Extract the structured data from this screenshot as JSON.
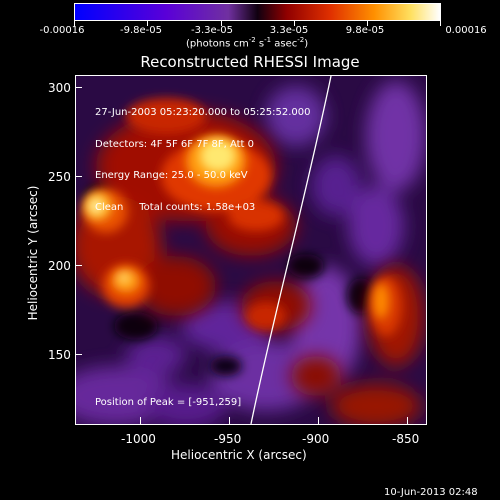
{
  "colorbar": {
    "ticks": [
      "-0.00016",
      "-9.8e-05",
      "-3.3e-05",
      "3.3e-05",
      "9.8e-05",
      "0.00016"
    ],
    "unit_prefix": "(photons cm",
    "unit_exp1": "-2",
    "unit_mid": " s",
    "unit_exp2": "-1",
    "unit_mid2": " asec",
    "unit_exp3": "-2",
    "unit_suffix": ")"
  },
  "title": "Reconstructed RHESSI Image",
  "info": {
    "line1": "27-Jun-2003 05:23:20.000 to 05:25:52.000",
    "line2": "Detectors: 4F 5F 6F 7F 8F, Att 0",
    "line3": "Energy Range: 25.0 - 50.0 keV",
    "line4": "Clean     Total counts: 1.58e+03"
  },
  "peak": "Position of Peak = [-951,259]",
  "axes": {
    "xlabel": "Heliocentric X (arcsec)",
    "ylabel": "Heliocentric Y (arcsec)",
    "xticks": [
      "-1000",
      "-950",
      "-900",
      "-850"
    ],
    "yticks": [
      "300",
      "250",
      "200",
      "150"
    ]
  },
  "footer": "10-Jun-2013 02:48",
  "colors": {
    "background": "#000000",
    "foreground": "#ffffff"
  }
}
